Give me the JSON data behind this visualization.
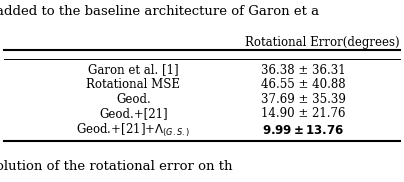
{
  "header_text": "added to the baseline architecture of Garon et a",
  "column_header": "Rotational Error(degrees)",
  "rows": [
    [
      "Garon et al. [1]",
      "36.38 ± 36.31"
    ],
    [
      "Rotational MSE",
      "46.55 ± 40.88"
    ],
    [
      "Geod.",
      "37.69 ± 35.39"
    ],
    [
      "Geod.+[21]",
      "14.90 ± 21.76"
    ],
    [
      "Geod.+[21]+$\\Lambda_{(G.S.)}$",
      "9.99 ± 13.76"
    ]
  ],
  "bg_color": "#ffffff",
  "text_color": "#000000",
  "font_size": 8.5,
  "header_font_size": 9.5,
  "footer_text": "olution of the rotational error on th"
}
